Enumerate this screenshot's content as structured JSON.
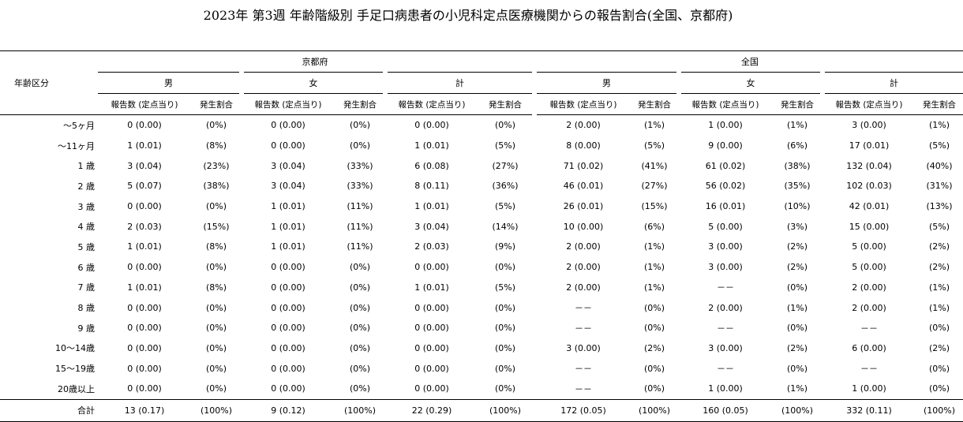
{
  "title": "2023年 第3週 年齢階級別 手足口病患者の小児科定点医療機関からの報告割合(全国、京都府)",
  "header": {
    "age_label": "年齢区分",
    "groups": [
      "京都府",
      "全国"
    ],
    "sexes": [
      "男",
      "女",
      "計"
    ],
    "col_count": "報告数 (定点当り)",
    "col_pct": "発生割合"
  },
  "rows": [
    {
      "age": "～5ヶ月",
      "c": [
        "0 (0.00)",
        "(0%)",
        "0 (0.00)",
        "(0%)",
        "0 (0.00)",
        "(0%)",
        "2 (0.00)",
        "(1%)",
        "1 (0.00)",
        "(1%)",
        "3 (0.00)",
        "(1%)"
      ]
    },
    {
      "age": "～11ヶ月",
      "c": [
        "1 (0.01)",
        "(8%)",
        "0 (0.00)",
        "(0%)",
        "1 (0.01)",
        "(5%)",
        "8 (0.00)",
        "(5%)",
        "9 (0.00)",
        "(6%)",
        "17 (0.01)",
        "(5%)"
      ]
    },
    {
      "age": "1 歳",
      "c": [
        "3 (0.04)",
        "(23%)",
        "3 (0.04)",
        "(33%)",
        "6 (0.08)",
        "(27%)",
        "71 (0.02)",
        "(41%)",
        "61 (0.02)",
        "(38%)",
        "132 (0.04)",
        "(40%)"
      ]
    },
    {
      "age": "2 歳",
      "c": [
        "5 (0.07)",
        "(38%)",
        "3 (0.04)",
        "(33%)",
        "8 (0.11)",
        "(36%)",
        "46 (0.01)",
        "(27%)",
        "56 (0.02)",
        "(35%)",
        "102 (0.03)",
        "(31%)"
      ]
    },
    {
      "age": "3 歳",
      "c": [
        "0 (0.00)",
        "(0%)",
        "1 (0.01)",
        "(11%)",
        "1 (0.01)",
        "(5%)",
        "26 (0.01)",
        "(15%)",
        "16 (0.01)",
        "(10%)",
        "42 (0.01)",
        "(13%)"
      ]
    },
    {
      "age": "4 歳",
      "c": [
        "2 (0.03)",
        "(15%)",
        "1 (0.01)",
        "(11%)",
        "3 (0.04)",
        "(14%)",
        "10 (0.00)",
        "(6%)",
        "5 (0.00)",
        "(3%)",
        "15 (0.00)",
        "(5%)"
      ]
    },
    {
      "age": "5 歳",
      "c": [
        "1 (0.01)",
        "(8%)",
        "1 (0.01)",
        "(11%)",
        "2 (0.03)",
        "(9%)",
        "2 (0.00)",
        "(1%)",
        "3 (0.00)",
        "(2%)",
        "5 (0.00)",
        "(2%)"
      ]
    },
    {
      "age": "6 歳",
      "c": [
        "0 (0.00)",
        "(0%)",
        "0 (0.00)",
        "(0%)",
        "0 (0.00)",
        "(0%)",
        "2 (0.00)",
        "(1%)",
        "3 (0.00)",
        "(2%)",
        "5 (0.00)",
        "(2%)"
      ]
    },
    {
      "age": "7 歳",
      "c": [
        "1 (0.01)",
        "(8%)",
        "0 (0.00)",
        "(0%)",
        "1 (0.01)",
        "(5%)",
        "2 (0.00)",
        "(1%)",
        "－－",
        "(0%)",
        "2 (0.00)",
        "(1%)"
      ]
    },
    {
      "age": "8 歳",
      "c": [
        "0 (0.00)",
        "(0%)",
        "0 (0.00)",
        "(0%)",
        "0 (0.00)",
        "(0%)",
        "－－",
        "(0%)",
        "2 (0.00)",
        "(1%)",
        "2 (0.00)",
        "(1%)"
      ]
    },
    {
      "age": "9 歳",
      "c": [
        "0 (0.00)",
        "(0%)",
        "0 (0.00)",
        "(0%)",
        "0 (0.00)",
        "(0%)",
        "－－",
        "(0%)",
        "－－",
        "(0%)",
        "－－",
        "(0%)"
      ]
    },
    {
      "age": "10～14歳",
      "c": [
        "0 (0.00)",
        "(0%)",
        "0 (0.00)",
        "(0%)",
        "0 (0.00)",
        "(0%)",
        "3 (0.00)",
        "(2%)",
        "3 (0.00)",
        "(2%)",
        "6 (0.00)",
        "(2%)"
      ]
    },
    {
      "age": "15～19歳",
      "c": [
        "0 (0.00)",
        "(0%)",
        "0 (0.00)",
        "(0%)",
        "0 (0.00)",
        "(0%)",
        "－－",
        "(0%)",
        "－－",
        "(0%)",
        "－－",
        "(0%)"
      ]
    },
    {
      "age": "20歳以上",
      "c": [
        "0 (0.00)",
        "(0%)",
        "0 (0.00)",
        "(0%)",
        "0 (0.00)",
        "(0%)",
        "－－",
        "(0%)",
        "1 (0.00)",
        "(1%)",
        "1 (0.00)",
        "(0%)"
      ]
    }
  ],
  "total": {
    "age": "合計",
    "c": [
      "13 (0.17)",
      "(100%)",
      "9 (0.12)",
      "(100%)",
      "22 (0.29)",
      "(100%)",
      "172 (0.05)",
      "(100%)",
      "160 (0.05)",
      "(100%)",
      "332 (0.11)",
      "(100%)"
    ]
  }
}
